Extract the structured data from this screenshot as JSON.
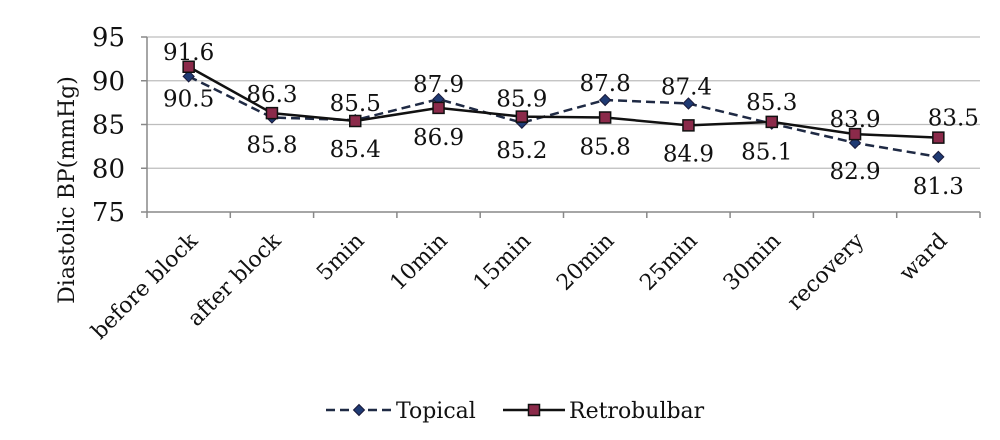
{
  "chart_data": {
    "type": "line",
    "title": "",
    "xlabel": "",
    "ylabel": "Diastolic BP(mmHg)",
    "ylim": [
      75,
      95
    ],
    "yticks": [
      75,
      80,
      85,
      90,
      95
    ],
    "grid": true,
    "legend_position": "bottom",
    "categories": [
      "before block",
      "after block",
      "5min",
      "10min",
      "15min",
      "20min",
      "25min",
      "30min",
      "recovery",
      "ward"
    ],
    "series": [
      {
        "name": "Topical",
        "values": [
          90.5,
          85.8,
          85.5,
          87.9,
          85.2,
          87.8,
          87.4,
          85.1,
          82.9,
          81.3
        ],
        "line_style": "dashed",
        "marker": "diamond",
        "color": "#1f2a44",
        "marker_color": "#1f3a73",
        "labels": [
          "90.5",
          "85.8",
          "85.5",
          "87.9",
          "85.2",
          "87.8",
          "87.4",
          "85.1",
          "82.9",
          "81.3"
        ]
      },
      {
        "name": "Retrobulbar",
        "values": [
          91.6,
          86.3,
          85.4,
          86.9,
          85.9,
          85.8,
          84.9,
          85.3,
          83.9,
          83.5
        ],
        "line_style": "solid",
        "marker": "square",
        "color": "#111111",
        "marker_color": "#8b2a4a",
        "labels": [
          "91.6",
          "86.3",
          "85.4",
          "86.9",
          "85.9",
          "85.8",
          "84.9",
          "85.3",
          "83.9",
          "83.5"
        ]
      }
    ]
  }
}
